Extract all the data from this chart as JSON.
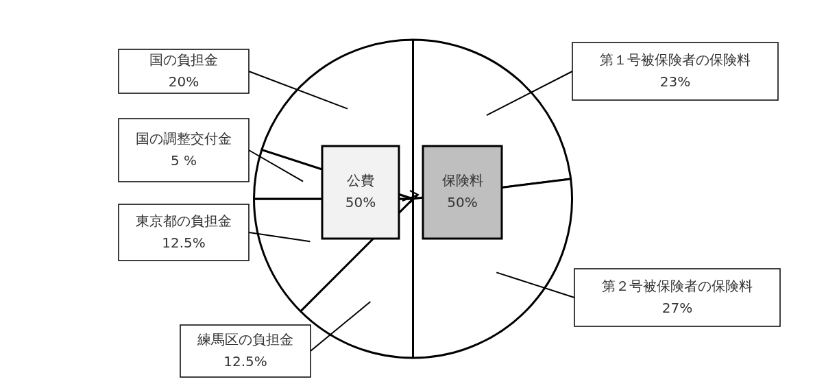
{
  "chart_data": {
    "type": "pie",
    "categories": [
      "第１号被保険者の保険料",
      "第２号被保険者の保険料",
      "練馬区の負担金",
      "東京都の負担金",
      "国の調整交付金",
      "国の負担金"
    ],
    "values": [
      23,
      27,
      12.5,
      12.5,
      5,
      20
    ],
    "value_labels": [
      "23%",
      "27%",
      "12.5%",
      "12.5%",
      "5 %",
      "20%"
    ],
    "colors": [
      "#ffffff",
      "#ffffff",
      "#ffffff",
      "#ffffff",
      "#ffffff",
      "#ffffff"
    ],
    "annotations": [
      "公費\n50%",
      "保険料\n50%"
    ],
    "legend": false
  }
}
